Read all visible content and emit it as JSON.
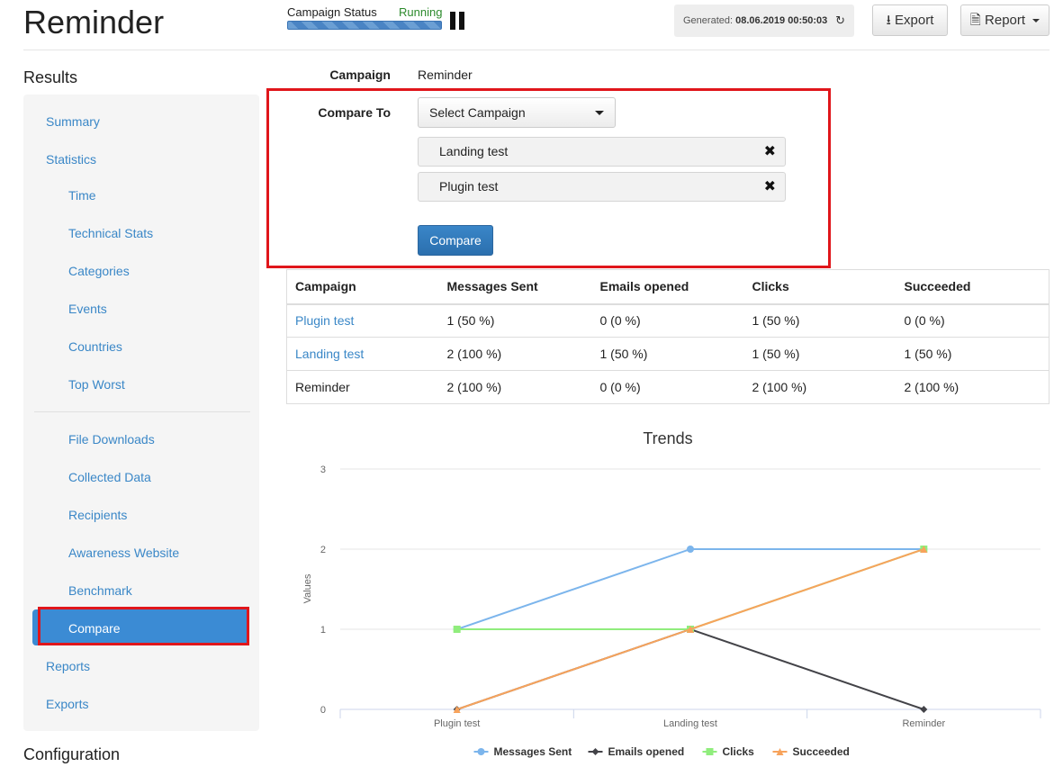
{
  "header": {
    "title": "Reminder",
    "status_label": "Campaign Status",
    "status_value": "Running",
    "status_progress": 1.0,
    "generated_label": "Generated:",
    "generated_value": "08.06.2019 00:50:03",
    "export_label": "Export",
    "report_label": "Report"
  },
  "sidebar": {
    "results_title": "Results",
    "items": [
      {
        "label": "Summary"
      },
      {
        "label": "Statistics"
      },
      {
        "label": "Time"
      },
      {
        "label": "Technical Stats"
      },
      {
        "label": "Categories"
      },
      {
        "label": "Events"
      },
      {
        "label": "Countries"
      },
      {
        "label": "Top Worst"
      },
      {
        "label": "File Downloads"
      },
      {
        "label": "Collected Data"
      },
      {
        "label": "Recipients"
      },
      {
        "label": "Awareness Website"
      },
      {
        "label": "Benchmark"
      },
      {
        "label": "Compare"
      },
      {
        "label": "Reports"
      },
      {
        "label": "Exports"
      }
    ],
    "active_item": "Compare",
    "configuration_title": "Configuration"
  },
  "form": {
    "campaign_label": "Campaign",
    "campaign_value": "Reminder",
    "compare_to_label": "Compare To",
    "select_label": "Select Campaign",
    "selected": [
      {
        "label": "Landing test"
      },
      {
        "label": "Plugin test"
      }
    ],
    "compare_button": "Compare"
  },
  "table": {
    "headers": [
      "Campaign",
      "Messages Sent",
      "Emails opened",
      "Clicks",
      "Succeeded"
    ],
    "rows": [
      {
        "campaign": "Plugin test",
        "link": true,
        "cells": [
          "1 (50 %)",
          "0 (0 %)",
          "1 (50 %)",
          "0 (0 %)"
        ]
      },
      {
        "campaign": "Landing test",
        "link": true,
        "cells": [
          "2 (100 %)",
          "1 (50 %)",
          "1 (50 %)",
          "1 (50 %)"
        ]
      },
      {
        "campaign": "Reminder",
        "link": false,
        "cells": [
          "2 (100 %)",
          "0 (0 %)",
          "2 (100 %)",
          "2 (100 %)"
        ]
      }
    ]
  },
  "chart_data": {
    "type": "line",
    "title": "Trends",
    "xlabel": "",
    "ylabel": "Values",
    "categories": [
      "Plugin test",
      "Landing test",
      "Reminder"
    ],
    "ylim": [
      0,
      3
    ],
    "yticks": [
      "0",
      "1",
      "2",
      "3"
    ],
    "grid": true,
    "legend_position": "bottom",
    "series": [
      {
        "name": "Messages Sent",
        "values": [
          1,
          2,
          2
        ],
        "color": "#7cb5ec",
        "marker": "circle"
      },
      {
        "name": "Emails opened",
        "values": [
          0,
          1,
          0
        ],
        "color": "#434348",
        "marker": "diamond"
      },
      {
        "name": "Clicks",
        "values": [
          1,
          1,
          2
        ],
        "color": "#90ed7d",
        "marker": "square"
      },
      {
        "name": "Succeeded",
        "values": [
          0,
          1,
          2
        ],
        "color": "#f7a35c",
        "marker": "triangle"
      }
    ]
  }
}
